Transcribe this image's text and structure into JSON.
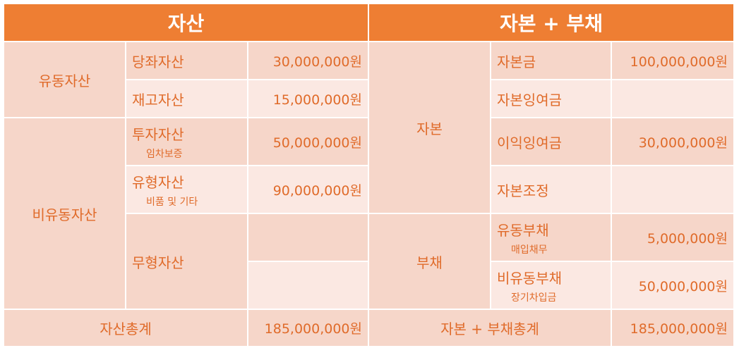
{
  "header": {
    "assets": "자산",
    "equity_liabilities": "자본 + 부채"
  },
  "assets": {
    "current": {
      "label": "유동자산",
      "quick": {
        "label": "당좌자산",
        "value": "30,000,000원"
      },
      "inventory": {
        "label": "재고자산",
        "value": "15,000,000원"
      }
    },
    "noncurrent": {
      "label": "비유동자산",
      "investment": {
        "label": "투자자산",
        "sub": "임차보증",
        "value": "50,000,000원"
      },
      "tangible": {
        "label": "유형자산",
        "sub": "비품 및 기타",
        "value": "90,000,000원"
      },
      "intangible": {
        "label": "무형자산",
        "value": "",
        "value2": ""
      }
    }
  },
  "equity": {
    "label": "자본",
    "capital_stock": {
      "label": "자본금",
      "value": "100,000,000원"
    },
    "capital_surplus": {
      "label": "자본잉여금",
      "value": ""
    },
    "retained_earnings": {
      "label": "이익잉여금",
      "value": "30,000,000원"
    },
    "capital_adjustment": {
      "label": "자본조정",
      "value": ""
    }
  },
  "liabilities": {
    "label": "부채",
    "current": {
      "label": "유동부채",
      "sub": "매입채무",
      "value": "5,000,000원"
    },
    "noncurrent": {
      "label": "비유동부채",
      "sub": "장기차입금",
      "value": "50,000,000원"
    }
  },
  "totals": {
    "assets_label": "자산총계",
    "assets_value": "185,000,000원",
    "el_label": "자본 + 부채총계",
    "el_value": "185,000,000원"
  },
  "colors": {
    "header": "#ee7e33",
    "dark_cell": "#f6d6c9",
    "light_cell": "#fbe8e2",
    "text": "#e06b2a"
  }
}
